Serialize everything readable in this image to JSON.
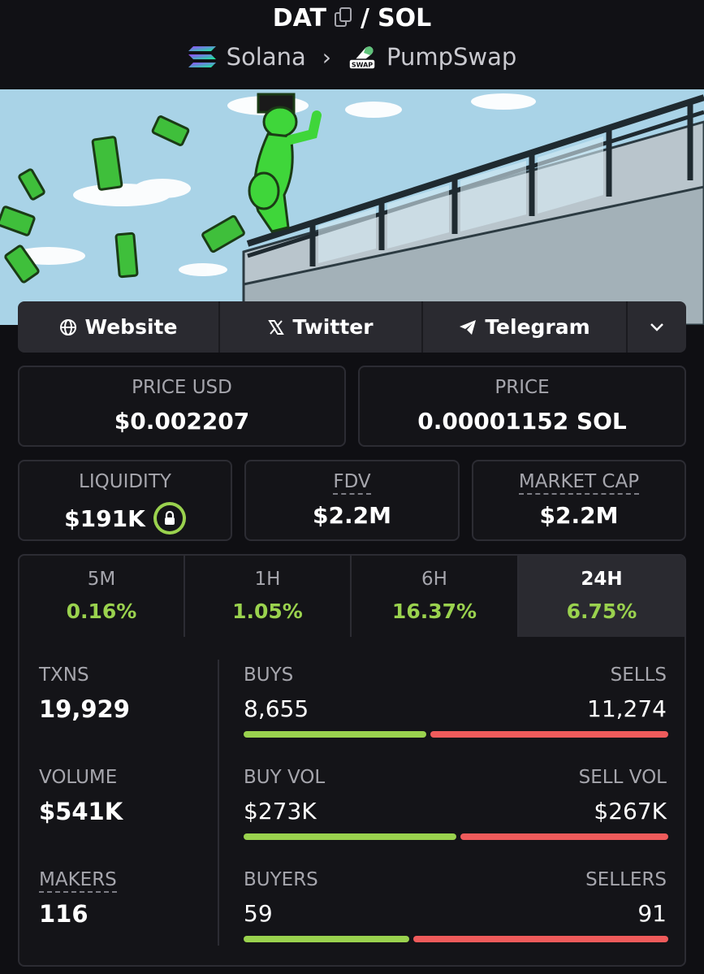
{
  "header": {
    "base_token": "DAT",
    "separator": "/",
    "quote_token": "SOL",
    "chain": "Solana",
    "dex": "PumpSwap",
    "dex_badge": "SWAP"
  },
  "links": {
    "website": "Website",
    "twitter": "Twitter",
    "telegram": "Telegram"
  },
  "prices": {
    "price_usd_label": "PRICE USD",
    "price_usd": "$0.002207",
    "price_label": "PRICE",
    "price_native": "0.00001152 SOL"
  },
  "metrics": {
    "liquidity_label": "LIQUIDITY",
    "liquidity": "$191K",
    "fdv_label": "FDV",
    "fdv": "$2.2M",
    "mcap_label": "MARKET CAP",
    "mcap": "$2.2M"
  },
  "timeframes": [
    {
      "label": "5M",
      "change": "0.16%"
    },
    {
      "label": "1H",
      "change": "1.05%"
    },
    {
      "label": "6H",
      "change": "16.37%"
    },
    {
      "label": "24H",
      "change": "6.75%",
      "active": true
    }
  ],
  "stats": {
    "txns_label": "TXNS",
    "txns": "19,929",
    "volume_label": "VOLUME",
    "volume": "$541K",
    "makers_label": "MAKERS",
    "makers": "116",
    "buys_label": "BUYS",
    "buys": "8,655",
    "sells_label": "SELLS",
    "sells": "11,274",
    "buy_vol_label": "BUY VOL",
    "buy_vol": "$273K",
    "sell_vol_label": "SELL VOL",
    "sell_vol": "$267K",
    "buyers_label": "BUYERS",
    "buyers": "59",
    "sellers_label": "SELLERS",
    "sellers": "91",
    "buys_fraction": 0.434,
    "buy_vol_fraction": 0.505,
    "buyers_fraction": 0.393
  },
  "colors": {
    "positive": "#9ad24e",
    "negative": "#ef5b5b",
    "background": "#0f0f13",
    "card": "#141418"
  }
}
